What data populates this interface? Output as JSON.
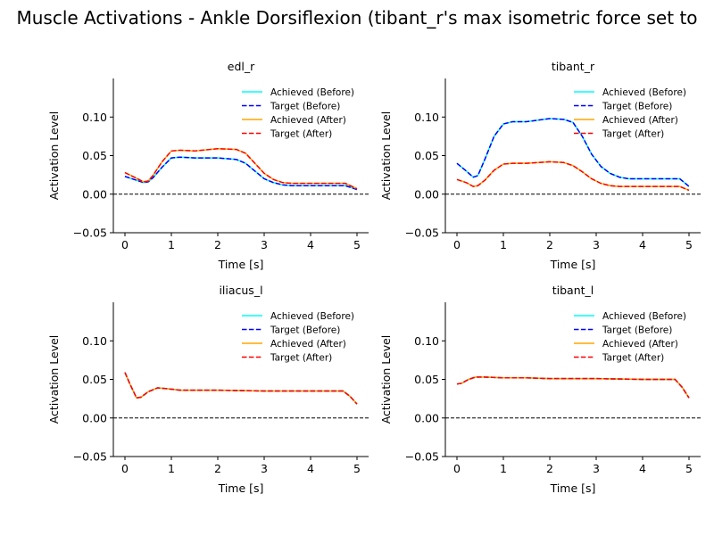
{
  "figure_title": "Muscle Activations - Ankle Dorsiflexion (tibant_r's max isometric force set to",
  "colors": {
    "achieved_before": "#00ffff",
    "target_before": "#0000ff",
    "achieved_after": "#ffa500",
    "target_after": "#ff0000",
    "zero_line": "#000000"
  },
  "chart_data": [
    {
      "type": "line",
      "title": "edl_r",
      "xlabel": "Time [s]",
      "ylabel": "Activation Level",
      "xlim": [
        -0.25,
        5.25
      ],
      "ylim": [
        -0.05,
        0.15
      ],
      "xticks": [
        "0",
        "1",
        "2",
        "3",
        "4",
        "5"
      ],
      "yticks": [
        "−0.05",
        "0.00",
        "0.05",
        "0.10"
      ],
      "reference_line_y": 0,
      "legend_placement": "top-right",
      "series": [
        {
          "name": "Achieved (Before)",
          "style": "solid",
          "color_key": "achieved_before",
          "x": [
            0,
            0.2,
            0.4,
            0.5,
            0.6,
            0.8,
            1.0,
            1.2,
            1.5,
            2.0,
            2.4,
            2.6,
            2.8,
            3.0,
            3.2,
            3.4,
            3.6,
            3.8,
            4.0,
            4.5,
            4.75,
            5.0
          ],
          "y": [
            0.023,
            0.019,
            0.015,
            0.016,
            0.021,
            0.035,
            0.047,
            0.048,
            0.047,
            0.047,
            0.045,
            0.04,
            0.03,
            0.02,
            0.015,
            0.012,
            0.011,
            0.011,
            0.011,
            0.011,
            0.011,
            0.006
          ]
        },
        {
          "name": "Target (Before)",
          "style": "dashed",
          "color_key": "target_before",
          "x": [
            0,
            0.2,
            0.4,
            0.5,
            0.6,
            0.8,
            1.0,
            1.2,
            1.5,
            2.0,
            2.4,
            2.6,
            2.8,
            3.0,
            3.2,
            3.4,
            3.6,
            3.8,
            4.0,
            4.5,
            4.75,
            5.0
          ],
          "y": [
            0.023,
            0.019,
            0.015,
            0.016,
            0.021,
            0.035,
            0.047,
            0.048,
            0.047,
            0.047,
            0.045,
            0.04,
            0.03,
            0.02,
            0.015,
            0.012,
            0.011,
            0.011,
            0.011,
            0.011,
            0.011,
            0.006
          ]
        },
        {
          "name": "Achieved (After)",
          "style": "solid",
          "color_key": "achieved_after",
          "x": [
            0,
            0.2,
            0.4,
            0.5,
            0.6,
            0.8,
            1.0,
            1.2,
            1.5,
            2.0,
            2.4,
            2.6,
            2.8,
            3.0,
            3.2,
            3.4,
            3.6,
            3.8,
            4.0,
            4.5,
            4.75,
            5.0
          ],
          "y": [
            0.028,
            0.022,
            0.016,
            0.017,
            0.024,
            0.042,
            0.056,
            0.057,
            0.056,
            0.059,
            0.058,
            0.053,
            0.04,
            0.027,
            0.019,
            0.015,
            0.014,
            0.014,
            0.014,
            0.014,
            0.014,
            0.007
          ]
        },
        {
          "name": "Target (After)",
          "style": "dashed",
          "color_key": "target_after",
          "x": [
            0,
            0.2,
            0.4,
            0.5,
            0.6,
            0.8,
            1.0,
            1.2,
            1.5,
            2.0,
            2.4,
            2.6,
            2.8,
            3.0,
            3.2,
            3.4,
            3.6,
            3.8,
            4.0,
            4.5,
            4.75,
            5.0
          ],
          "y": [
            0.028,
            0.022,
            0.016,
            0.017,
            0.024,
            0.042,
            0.056,
            0.057,
            0.056,
            0.059,
            0.058,
            0.053,
            0.04,
            0.027,
            0.019,
            0.015,
            0.014,
            0.014,
            0.014,
            0.014,
            0.014,
            0.007
          ]
        }
      ]
    },
    {
      "type": "line",
      "title": "tibant_r",
      "xlabel": "Time [s]",
      "ylabel": "Activation Level",
      "xlim": [
        -0.25,
        5.25
      ],
      "ylim": [
        -0.05,
        0.15
      ],
      "xticks": [
        "0",
        "1",
        "2",
        "3",
        "4",
        "5"
      ],
      "yticks": [
        "−0.05",
        "0.00",
        "0.05",
        "0.10"
      ],
      "reference_line_y": 0,
      "legend_placement": "top-right",
      "series": [
        {
          "name": "Achieved (Before)",
          "style": "solid",
          "color_key": "achieved_before",
          "x": [
            0,
            0.2,
            0.35,
            0.45,
            0.6,
            0.8,
            1.0,
            1.2,
            1.5,
            2.0,
            2.3,
            2.5,
            2.7,
            2.9,
            3.1,
            3.3,
            3.5,
            3.7,
            4.0,
            4.5,
            4.8,
            5.0
          ],
          "y": [
            0.04,
            0.03,
            0.022,
            0.024,
            0.045,
            0.075,
            0.091,
            0.094,
            0.094,
            0.098,
            0.097,
            0.093,
            0.075,
            0.052,
            0.036,
            0.027,
            0.022,
            0.02,
            0.02,
            0.02,
            0.02,
            0.01
          ]
        },
        {
          "name": "Target (Before)",
          "style": "dashed",
          "color_key": "target_before",
          "x": [
            0,
            0.2,
            0.35,
            0.45,
            0.6,
            0.8,
            1.0,
            1.2,
            1.5,
            2.0,
            2.3,
            2.5,
            2.7,
            2.9,
            3.1,
            3.3,
            3.5,
            3.7,
            4.0,
            4.5,
            4.8,
            5.0
          ],
          "y": [
            0.04,
            0.03,
            0.022,
            0.024,
            0.045,
            0.075,
            0.091,
            0.094,
            0.094,
            0.098,
            0.097,
            0.093,
            0.075,
            0.052,
            0.036,
            0.027,
            0.022,
            0.02,
            0.02,
            0.02,
            0.02,
            0.01
          ]
        },
        {
          "name": "Achieved (After)",
          "style": "solid",
          "color_key": "achieved_after",
          "x": [
            0,
            0.2,
            0.35,
            0.45,
            0.6,
            0.8,
            1.0,
            1.2,
            1.5,
            2.0,
            2.3,
            2.5,
            2.7,
            2.9,
            3.1,
            3.3,
            3.5,
            3.7,
            4.0,
            4.5,
            4.8,
            5.0
          ],
          "y": [
            0.019,
            0.015,
            0.01,
            0.011,
            0.018,
            0.031,
            0.039,
            0.04,
            0.04,
            0.042,
            0.041,
            0.037,
            0.029,
            0.02,
            0.014,
            0.011,
            0.01,
            0.01,
            0.01,
            0.01,
            0.01,
            0.005
          ]
        },
        {
          "name": "Target (After)",
          "style": "dashed",
          "color_key": "target_after",
          "x": [
            0,
            0.2,
            0.35,
            0.45,
            0.6,
            0.8,
            1.0,
            1.2,
            1.5,
            2.0,
            2.3,
            2.5,
            2.7,
            2.9,
            3.1,
            3.3,
            3.5,
            3.7,
            4.0,
            4.5,
            4.8,
            5.0
          ],
          "y": [
            0.019,
            0.015,
            0.01,
            0.011,
            0.018,
            0.031,
            0.039,
            0.04,
            0.04,
            0.042,
            0.041,
            0.037,
            0.029,
            0.02,
            0.014,
            0.011,
            0.01,
            0.01,
            0.01,
            0.01,
            0.01,
            0.005
          ]
        }
      ]
    },
    {
      "type": "line",
      "title": "iliacus_l",
      "xlabel": "Time [s]",
      "ylabel": "Activation Level",
      "xlim": [
        -0.25,
        5.25
      ],
      "ylim": [
        -0.05,
        0.15
      ],
      "xticks": [
        "0",
        "1",
        "2",
        "3",
        "4",
        "5"
      ],
      "yticks": [
        "−0.05",
        "0.00",
        "0.05",
        "0.10"
      ],
      "reference_line_y": 0,
      "legend_placement": "top-right",
      "series": [
        {
          "name": "Achieved (Before)",
          "style": "solid",
          "color_key": "achieved_before",
          "x": [
            0,
            0.1,
            0.25,
            0.35,
            0.5,
            0.7,
            0.9,
            1.2,
            2.0,
            3.0,
            4.0,
            4.7,
            4.85,
            5.0
          ],
          "y": [
            0.059,
            0.045,
            0.026,
            0.027,
            0.034,
            0.039,
            0.038,
            0.036,
            0.036,
            0.035,
            0.035,
            0.035,
            0.028,
            0.018
          ]
        },
        {
          "name": "Target (Before)",
          "style": "dashed",
          "color_key": "target_before",
          "x": [
            0,
            0.1,
            0.25,
            0.35,
            0.5,
            0.7,
            0.9,
            1.2,
            2.0,
            3.0,
            4.0,
            4.7,
            4.85,
            5.0
          ],
          "y": [
            0.059,
            0.045,
            0.026,
            0.027,
            0.034,
            0.039,
            0.038,
            0.036,
            0.036,
            0.035,
            0.035,
            0.035,
            0.028,
            0.018
          ]
        },
        {
          "name": "Achieved (After)",
          "style": "solid",
          "color_key": "achieved_after",
          "x": [
            0,
            0.1,
            0.25,
            0.35,
            0.5,
            0.7,
            0.9,
            1.2,
            2.0,
            3.0,
            4.0,
            4.7,
            4.85,
            5.0
          ],
          "y": [
            0.059,
            0.045,
            0.026,
            0.027,
            0.034,
            0.039,
            0.038,
            0.036,
            0.036,
            0.035,
            0.035,
            0.035,
            0.028,
            0.018
          ]
        },
        {
          "name": "Target (After)",
          "style": "dashed",
          "color_key": "target_after",
          "x": [
            0,
            0.1,
            0.25,
            0.35,
            0.5,
            0.7,
            0.9,
            1.2,
            2.0,
            3.0,
            4.0,
            4.7,
            4.85,
            5.0
          ],
          "y": [
            0.059,
            0.045,
            0.026,
            0.027,
            0.034,
            0.039,
            0.038,
            0.036,
            0.036,
            0.035,
            0.035,
            0.035,
            0.028,
            0.018
          ]
        }
      ]
    },
    {
      "type": "line",
      "title": "tibant_l",
      "xlabel": "Time [s]",
      "ylabel": "Activation Level",
      "xlim": [
        -0.25,
        5.25
      ],
      "ylim": [
        -0.05,
        0.15
      ],
      "xticks": [
        "0",
        "1",
        "2",
        "3",
        "4",
        "5"
      ],
      "yticks": [
        "−0.05",
        "0.00",
        "0.05",
        "0.10"
      ],
      "reference_line_y": 0,
      "legend_placement": "top-right",
      "series": [
        {
          "name": "Achieved (Before)",
          "style": "solid",
          "color_key": "achieved_before",
          "x": [
            0,
            0.1,
            0.25,
            0.4,
            0.6,
            1.0,
            1.5,
            2.0,
            3.0,
            4.0,
            4.7,
            4.85,
            5.0
          ],
          "y": [
            0.044,
            0.045,
            0.05,
            0.053,
            0.053,
            0.052,
            0.052,
            0.051,
            0.051,
            0.05,
            0.05,
            0.04,
            0.026
          ]
        },
        {
          "name": "Target (Before)",
          "style": "dashed",
          "color_key": "target_before",
          "x": [
            0,
            0.1,
            0.25,
            0.4,
            0.6,
            1.0,
            1.5,
            2.0,
            3.0,
            4.0,
            4.7,
            4.85,
            5.0
          ],
          "y": [
            0.044,
            0.045,
            0.05,
            0.053,
            0.053,
            0.052,
            0.052,
            0.051,
            0.051,
            0.05,
            0.05,
            0.04,
            0.026
          ]
        },
        {
          "name": "Achieved (After)",
          "style": "solid",
          "color_key": "achieved_after",
          "x": [
            0,
            0.1,
            0.25,
            0.4,
            0.6,
            1.0,
            1.5,
            2.0,
            3.0,
            4.0,
            4.7,
            4.85,
            5.0
          ],
          "y": [
            0.044,
            0.045,
            0.05,
            0.053,
            0.053,
            0.052,
            0.052,
            0.051,
            0.051,
            0.05,
            0.05,
            0.04,
            0.026
          ]
        },
        {
          "name": "Target (After)",
          "style": "dashed",
          "color_key": "target_after",
          "x": [
            0,
            0.1,
            0.25,
            0.4,
            0.6,
            1.0,
            1.5,
            2.0,
            3.0,
            4.0,
            4.7,
            4.85,
            5.0
          ],
          "y": [
            0.044,
            0.045,
            0.05,
            0.053,
            0.053,
            0.052,
            0.052,
            0.051,
            0.051,
            0.05,
            0.05,
            0.04,
            0.026
          ]
        }
      ]
    }
  ]
}
